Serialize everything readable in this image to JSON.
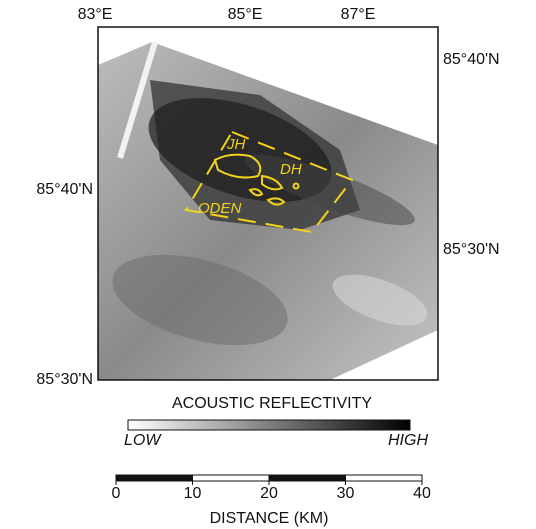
{
  "top_labels": [
    "83°E",
    "85°E",
    "87°E"
  ],
  "left_labels": [
    "85°40'N",
    "85°30'N"
  ],
  "right_labels": [
    "85°40'N",
    "85°30'N"
  ],
  "map_labels": [
    "JH",
    "DH",
    "ODEN"
  ],
  "legend": {
    "title": "ACOUSTIC REFLECTIVITY",
    "low": "LOW",
    "high": "HIGH"
  },
  "scale_bar": {
    "ticks": [
      0,
      10,
      20,
      30,
      40
    ],
    "label": "DISTANCE (KM)"
  }
}
